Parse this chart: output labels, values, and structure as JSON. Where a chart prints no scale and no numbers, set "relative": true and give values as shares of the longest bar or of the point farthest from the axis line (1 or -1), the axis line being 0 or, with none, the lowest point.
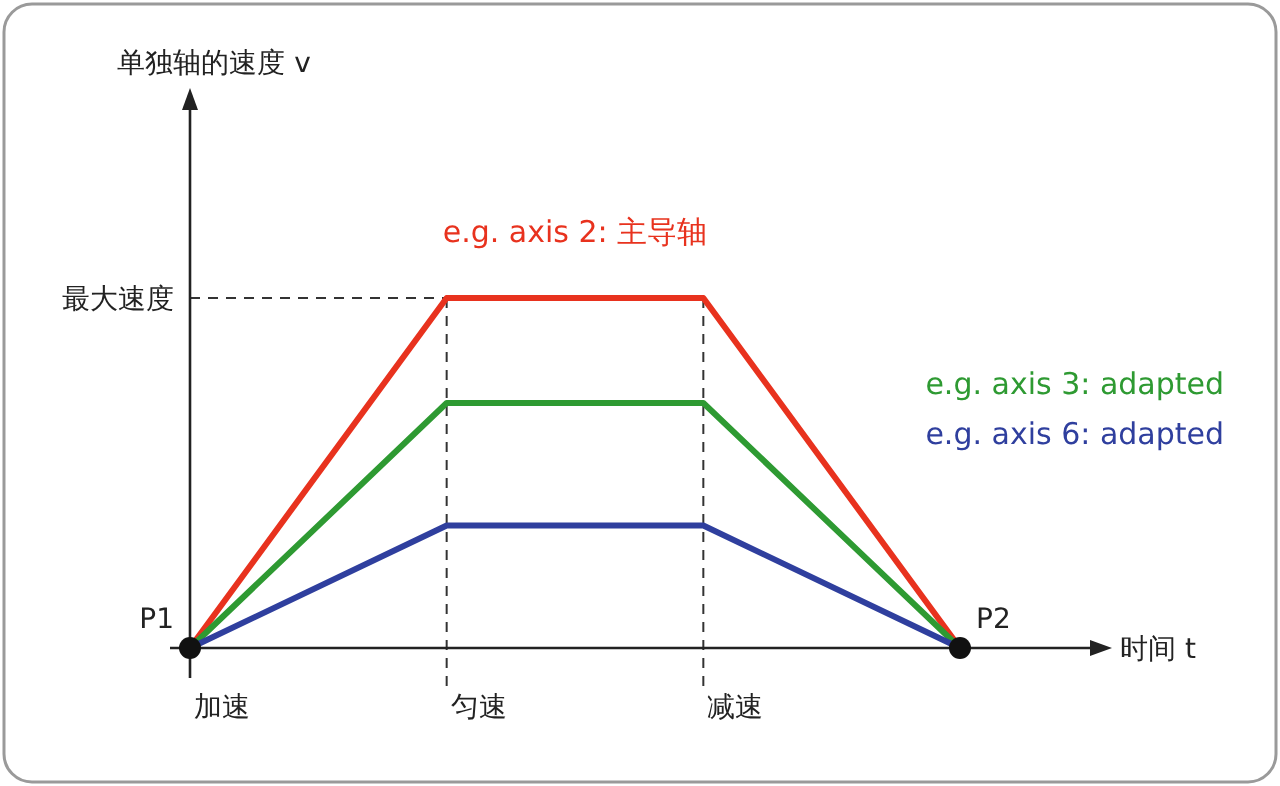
{
  "chart_data": {
    "type": "line",
    "relative": true,
    "xlabel": "时间 t",
    "categories": [
      null,
      null,
      null,
      null
    ],
    "series": [
      {
        "name": "e.g. axis 2: 主导轴",
        "color": "#e8321e",
        "values": [
          0,
          1,
          1,
          0
        ]
      },
      {
        "name": "e.g. axis 3: adapted",
        "color": "#2e9a32",
        "values": [
          0,
          0.7,
          0.7,
          0
        ]
      },
      {
        "name": "e.g. axis 6: adapted",
        "color": "#2f3f9e",
        "values": [
          0,
          0.35,
          0.35,
          0
        ]
      }
    ],
    "ref_lines": [
      {
        "axis": "y",
        "value": 1,
        "label": "最大速度",
        "line_style": "dashed"
      }
    ],
    "annotations": [
      "P1",
      "P2",
      "加速",
      "匀速",
      "减速",
      "单独轴的速度 v"
    ]
  }
}
